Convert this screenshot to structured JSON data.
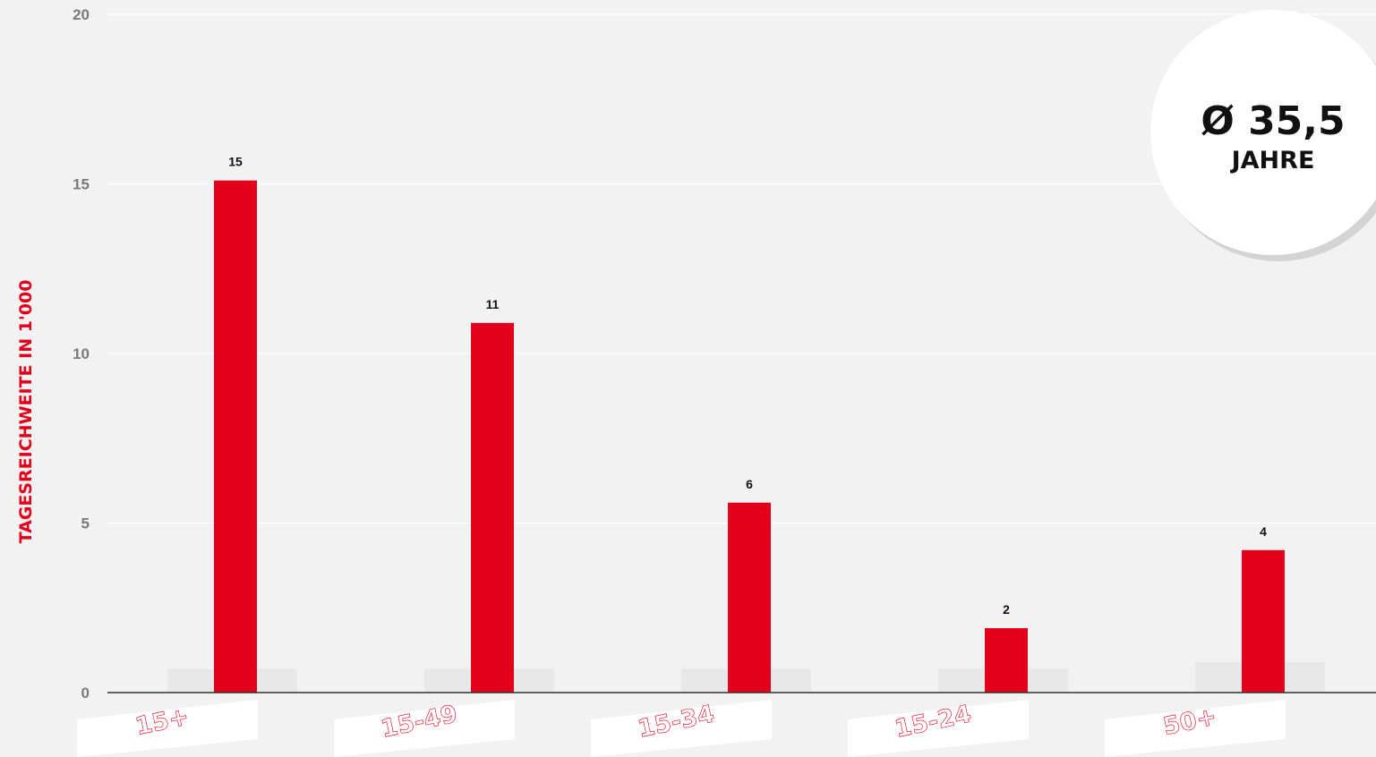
{
  "chart_data": {
    "type": "bar",
    "categories": [
      "15+",
      "15-49",
      "15-34",
      "15-24",
      "50+"
    ],
    "values": [
      15.1,
      10.9,
      5.6,
      1.9,
      4.2
    ],
    "value_labels": [
      "15",
      "11",
      "6",
      "2",
      "4"
    ],
    "ylabel": "TAGESREICHWEITE IN 1'000",
    "ylim": [
      0,
      20
    ],
    "yticks": [
      0,
      5,
      10,
      15,
      20
    ],
    "grid": true,
    "shadow_values": [
      0.7,
      0.7,
      0.7,
      0.7,
      0.9
    ]
  },
  "badge": {
    "main": "Ø 35,5",
    "sub": "JAHRE"
  },
  "colors": {
    "bar": "#e3001b",
    "background": "#f2f2f2",
    "grid": "#ffffff",
    "tick_text": "#7a7a7a",
    "axis_title": "#e3001b",
    "shadow_bar": "#e8e8e8",
    "category_tag": "#ffffff",
    "category_text": "#ffffff"
  }
}
